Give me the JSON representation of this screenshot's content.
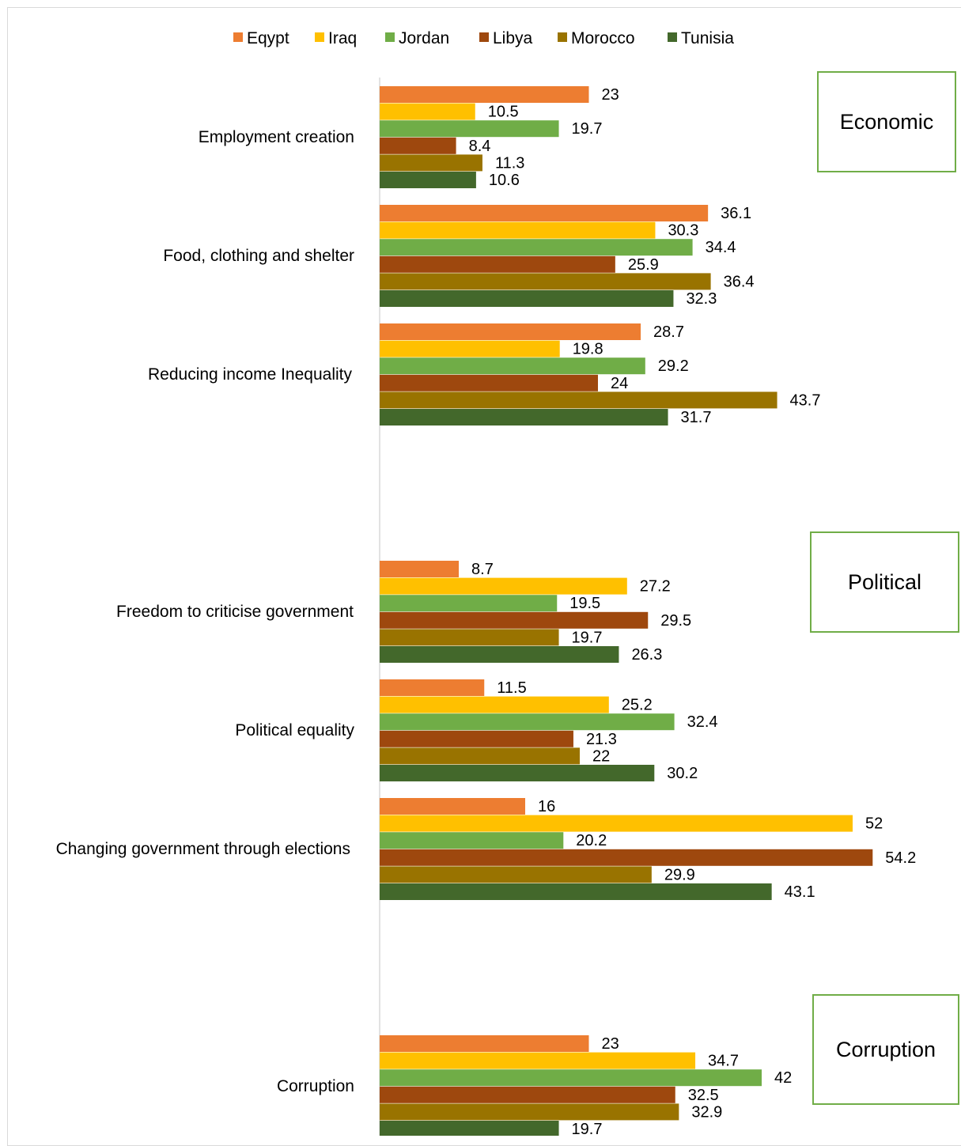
{
  "chart_data": {
    "type": "bar",
    "orientation": "horizontal",
    "legend_position": "top",
    "grid": false,
    "xlim": [
      0,
      55
    ],
    "series": [
      {
        "name": "Eqypt",
        "color": "#ED7D31",
        "values": [
          23,
          36.1,
          28.7,
          8.7,
          11.5,
          16,
          23
        ]
      },
      {
        "name": "Iraq",
        "color": "#FFC000",
        "values": [
          10.5,
          30.3,
          19.8,
          27.2,
          25.2,
          52,
          34.7
        ]
      },
      {
        "name": "Jordan",
        "color": "#70AD47",
        "values": [
          19.7,
          34.4,
          29.2,
          19.5,
          32.4,
          20.2,
          42
        ]
      },
      {
        "name": "Libya",
        "color": "#9E480E",
        "values": [
          8.4,
          25.9,
          24,
          29.5,
          21.3,
          54.2,
          32.5
        ]
      },
      {
        "name": "Morocco",
        "color": "#997300",
        "values": [
          11.3,
          36.4,
          43.7,
          19.7,
          22,
          29.9,
          32.9
        ]
      },
      {
        "name": "Tunisia",
        "color": "#43682B",
        "values": [
          10.6,
          32.3,
          31.7,
          26.3,
          30.2,
          43.1,
          19.7
        ]
      }
    ],
    "categories": [
      "Employment creation",
      "Food, clothing and shelter",
      "Reducing income Inequality",
      "Freedom to criticise government",
      "Political equality",
      "Changing government through elections",
      "Corruption"
    ],
    "group_boxes": [
      "Economic",
      "Political",
      "Corruption"
    ]
  },
  "colors": {
    "box_border": "#70AD47",
    "axis": "#d9d9d9",
    "text": "#000000"
  }
}
